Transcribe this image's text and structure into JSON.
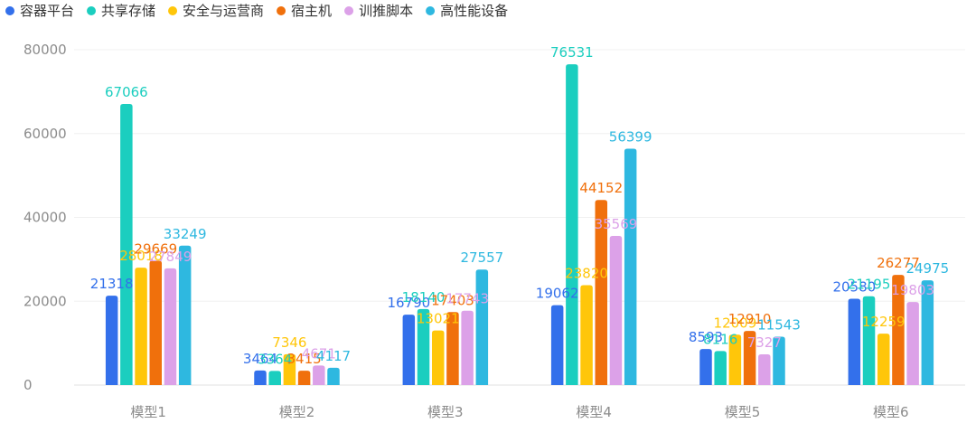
{
  "chart_data": {
    "type": "bar",
    "title": "",
    "xlabel": "",
    "ylabel": "",
    "categories": [
      "模型1",
      "模型2",
      "模型3",
      "模型4",
      "模型5",
      "模型6"
    ],
    "ylim": [
      0,
      80000
    ],
    "yticks": [
      0,
      20000,
      40000,
      60000,
      80000
    ],
    "grid": true,
    "legend_position": "top-left",
    "series": [
      {
        "name": "容器平台",
        "color": "#3370eb",
        "values": [
          21318,
          3464,
          16790,
          19062,
          8593,
          20580
        ]
      },
      {
        "name": "共享存储",
        "color": "#1bcebf",
        "values": [
          67066,
          3364,
          18140,
          76531,
          8116,
          21195
        ]
      },
      {
        "name": "安全与运营商",
        "color": "#ffc60a",
        "values": [
          28018,
          7346,
          13021,
          23820,
          12009,
          12259
        ]
      },
      {
        "name": "宿主机",
        "color": "#f0700c",
        "values": [
          29669,
          3415,
          17403,
          44152,
          12910,
          26277
        ]
      },
      {
        "name": "训推脚本",
        "color": "#dca1e8",
        "values": [
          27849,
          4671,
          17743,
          35569,
          7327,
          19803
        ]
      },
      {
        "name": "高性能设备",
        "color": "#2eb8e0",
        "values": [
          33249,
          4117,
          27557,
          56399,
          11543,
          24975
        ]
      }
    ]
  }
}
